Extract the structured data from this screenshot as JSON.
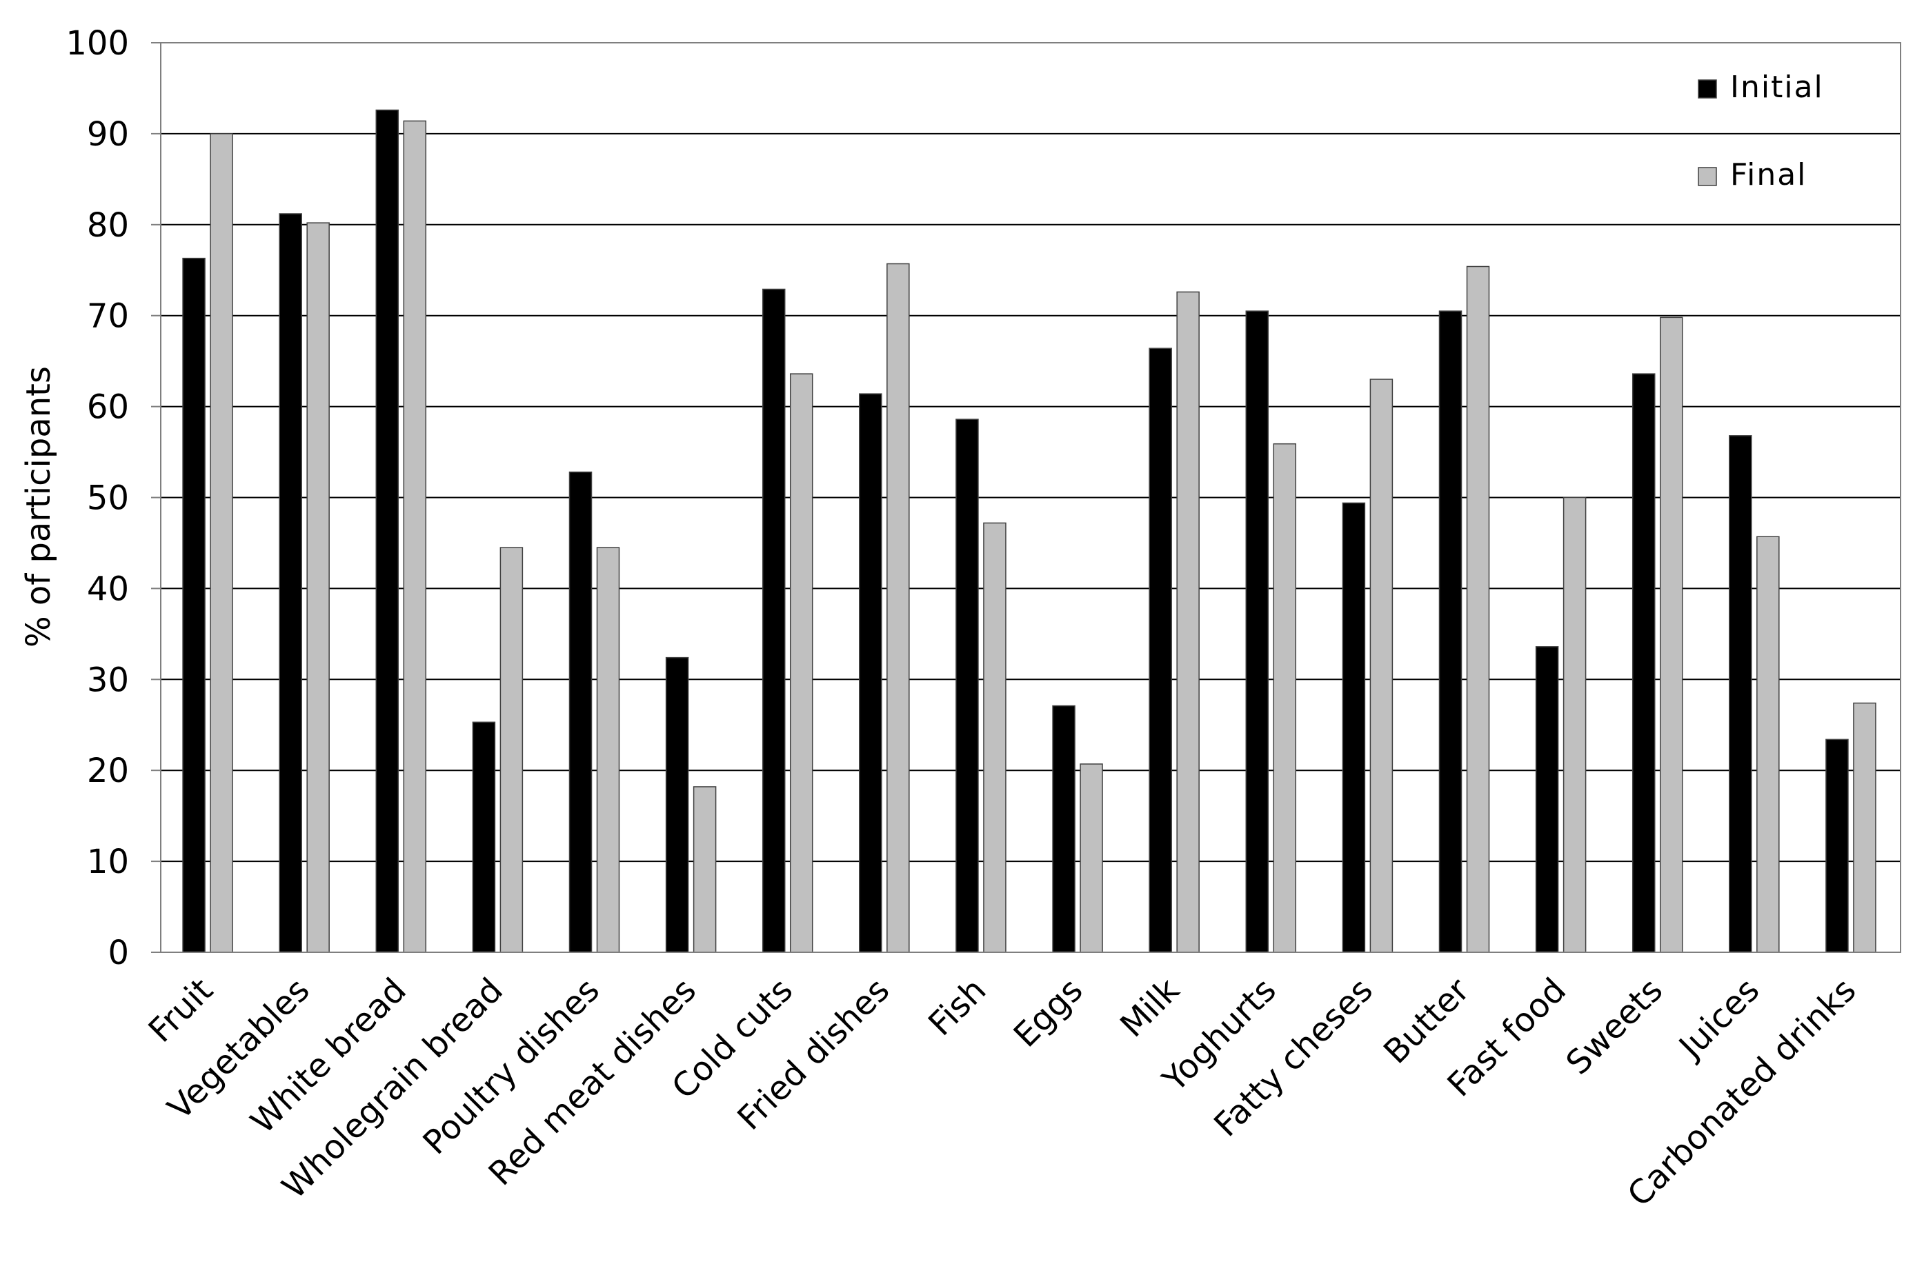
{
  "chart_data": {
    "type": "bar",
    "title": "",
    "xlabel": "",
    "ylabel": "% of participants",
    "ylim": [
      0,
      100
    ],
    "yticks": [
      0,
      10,
      20,
      30,
      40,
      50,
      60,
      70,
      80,
      90,
      100
    ],
    "grid": true,
    "legend_position": "top-right",
    "categories": [
      "Fruit",
      "Vegetables",
      "White bread",
      "Wholegrain bread",
      "Poultry dishes",
      "Red meat dishes",
      "Cold cuts",
      "Fried dishes",
      "Fish",
      "Eggs",
      "Milk",
      "Yoghurts",
      "Fatty cheses",
      "Butter",
      "Fast food",
      "Sweets",
      "Juices",
      "Carbonated drinks"
    ],
    "series": [
      {
        "name": "Initial",
        "color": "#000000",
        "values": [
          76.3,
          81.2,
          92.6,
          25.3,
          52.8,
          32.4,
          72.9,
          61.4,
          58.6,
          27.1,
          66.4,
          70.5,
          49.4,
          70.5,
          33.6,
          63.6,
          56.8,
          23.4
        ]
      },
      {
        "name": "Final",
        "color": "#c0c0c0",
        "values": [
          90.0,
          80.2,
          91.4,
          44.5,
          44.5,
          18.2,
          63.6,
          75.7,
          47.2,
          20.7,
          72.6,
          55.9,
          63.0,
          75.4,
          50.0,
          69.8,
          45.7,
          27.4
        ]
      }
    ]
  }
}
